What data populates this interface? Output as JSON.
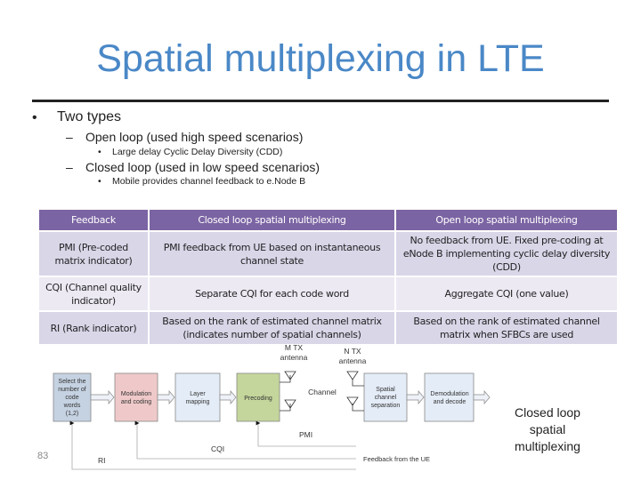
{
  "title": "Spatial multiplexing in LTE",
  "bullets": {
    "b1": "Two types",
    "b1a": "Open loop (used high speed scenarios)",
    "b1a1": "Large delay Cyclic Delay Diversity (CDD)",
    "b1b": "Closed loop (used in low speed scenarios)",
    "b1b1": "Mobile provides channel feedback to e.Node B"
  },
  "table": {
    "headers": [
      "Feedback",
      "Closed loop spatial multiplexing",
      "Open loop spatial multiplexing"
    ],
    "rows": [
      [
        "PMI (Pre-coded matrix indicator)",
        "PMI feedback from UE based on instantaneous channel state",
        "No feedback from UE.  Fixed pre-coding at eNode B implementing cyclic delay diversity (CDD)"
      ],
      [
        "CQI (Channel quality indicator)",
        "Separate CQI for each code word",
        "Aggregate CQI (one value)"
      ],
      [
        "RI (Rank indicator)",
        "Based on the rank of estimated channel matrix (indicates number of spatial channels)",
        "Based on the rank of estimated channel matrix when SFBCs are used"
      ]
    ]
  },
  "diagram": {
    "select": [
      "Select the",
      "number of",
      "code",
      "words",
      "(1,2)"
    ],
    "modulation": [
      "Modulation",
      "and coding"
    ],
    "layer": [
      "Layer",
      "mapping"
    ],
    "precoding": "Precoding",
    "mtx": [
      "M TX",
      "antenna"
    ],
    "ntx": [
      "N TX",
      "antenna"
    ],
    "channel": "Channel",
    "spatial": [
      "Spatial",
      "channel",
      "separation"
    ],
    "demod": [
      "Demodulation",
      "and decode"
    ],
    "pmi": "PMI",
    "cqi": "CQI",
    "ri": "RI",
    "feedback": "Feedback from the UE",
    "colors": {
      "select": "#c5d2e2",
      "modulation": "#efc9c9",
      "precoding": "#c4d69b",
      "light": "#e4ecf7"
    }
  },
  "caption": "Closed loop spatial multiplexing",
  "page_number": "83"
}
